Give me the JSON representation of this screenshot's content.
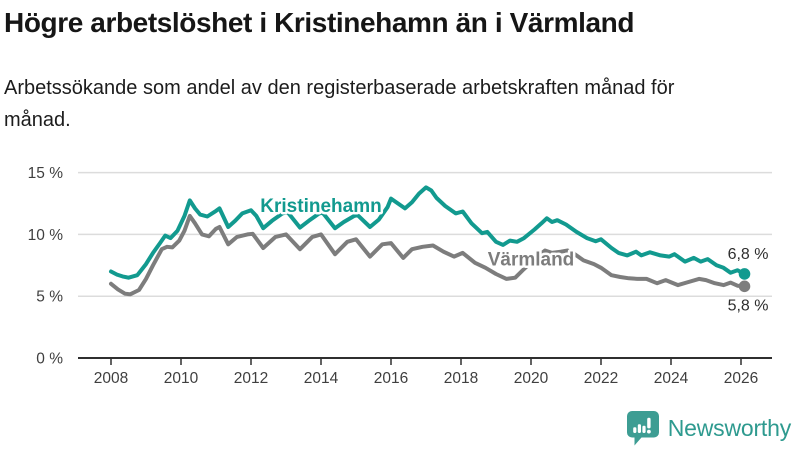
{
  "header": {
    "title": "Högre arbetslöshet i Kristinehamn än i Värmland",
    "subtitle": "Arbetssökande som andel av den registerbaserade arbetskraften månad för månad."
  },
  "chart_data": {
    "type": "line",
    "title": "Högre arbetslöshet i Kristinehamn än i Värmland",
    "xlabel": "",
    "ylabel": "",
    "unit": "%",
    "ylim": [
      0,
      15
    ],
    "xlim": [
      2008.0,
      2026.2
    ],
    "grid": "horizontal",
    "legend_position": "inline-labels",
    "y_ticks": [
      {
        "value": 0,
        "label": "0 %"
      },
      {
        "value": 5,
        "label": "5 %"
      },
      {
        "value": 10,
        "label": "10 %"
      },
      {
        "value": 15,
        "label": "15 %"
      }
    ],
    "x_ticks": [
      {
        "value": 2008,
        "label": "2008"
      },
      {
        "value": 2010,
        "label": "2010"
      },
      {
        "value": 2012,
        "label": "2012"
      },
      {
        "value": 2014,
        "label": "2014"
      },
      {
        "value": 2016,
        "label": "2016"
      },
      {
        "value": 2018,
        "label": "2018"
      },
      {
        "value": 2020,
        "label": "2020"
      },
      {
        "value": 2022,
        "label": "2022"
      },
      {
        "value": 2024,
        "label": "2024"
      },
      {
        "value": 2026,
        "label": "2026"
      }
    ],
    "series": [
      {
        "name": "Kristinehamn",
        "color": "#129a8f",
        "end_label": "6,8 %",
        "end_label_side": "above",
        "label_at": {
          "x": 2014.0,
          "y": 11.8
        },
        "points": [
          [
            2008.0,
            7.0
          ],
          [
            2008.17,
            6.75
          ],
          [
            2008.33,
            6.6
          ],
          [
            2008.5,
            6.5
          ],
          [
            2008.75,
            6.7
          ],
          [
            2009.0,
            7.6
          ],
          [
            2009.2,
            8.5
          ],
          [
            2009.4,
            9.3
          ],
          [
            2009.55,
            9.9
          ],
          [
            2009.7,
            9.7
          ],
          [
            2009.9,
            10.3
          ],
          [
            2010.1,
            11.5
          ],
          [
            2010.25,
            12.75
          ],
          [
            2010.4,
            12.1
          ],
          [
            2010.55,
            11.6
          ],
          [
            2010.75,
            11.45
          ],
          [
            2011.0,
            11.9
          ],
          [
            2011.1,
            12.1
          ],
          [
            2011.35,
            10.6
          ],
          [
            2011.55,
            11.1
          ],
          [
            2011.75,
            11.7
          ],
          [
            2012.0,
            11.95
          ],
          [
            2012.15,
            11.5
          ],
          [
            2012.35,
            10.5
          ],
          [
            2012.6,
            11.1
          ],
          [
            2012.9,
            11.7
          ],
          [
            2013.05,
            11.8
          ],
          [
            2013.4,
            10.55
          ],
          [
            2013.65,
            11.1
          ],
          [
            2013.95,
            11.7
          ],
          [
            2014.05,
            11.75
          ],
          [
            2014.4,
            10.5
          ],
          [
            2014.65,
            11.0
          ],
          [
            2014.95,
            11.5
          ],
          [
            2015.05,
            11.55
          ],
          [
            2015.4,
            10.6
          ],
          [
            2015.65,
            11.2
          ],
          [
            2015.9,
            12.2
          ],
          [
            2016.0,
            12.9
          ],
          [
            2016.2,
            12.5
          ],
          [
            2016.4,
            12.1
          ],
          [
            2016.6,
            12.6
          ],
          [
            2016.8,
            13.3
          ],
          [
            2017.0,
            13.8
          ],
          [
            2017.15,
            13.55
          ],
          [
            2017.3,
            12.95
          ],
          [
            2017.55,
            12.3
          ],
          [
            2017.85,
            11.7
          ],
          [
            2018.05,
            11.85
          ],
          [
            2018.3,
            10.9
          ],
          [
            2018.6,
            10.1
          ],
          [
            2018.75,
            10.2
          ],
          [
            2019.0,
            9.4
          ],
          [
            2019.2,
            9.15
          ],
          [
            2019.4,
            9.5
          ],
          [
            2019.6,
            9.4
          ],
          [
            2019.8,
            9.7
          ],
          [
            2020.1,
            10.4
          ],
          [
            2020.3,
            10.9
          ],
          [
            2020.45,
            11.3
          ],
          [
            2020.6,
            11.0
          ],
          [
            2020.75,
            11.15
          ],
          [
            2021.0,
            10.8
          ],
          [
            2021.3,
            10.2
          ],
          [
            2021.6,
            9.7
          ],
          [
            2021.85,
            9.45
          ],
          [
            2022.0,
            9.6
          ],
          [
            2022.3,
            8.9
          ],
          [
            2022.5,
            8.5
          ],
          [
            2022.75,
            8.3
          ],
          [
            2023.0,
            8.6
          ],
          [
            2023.15,
            8.3
          ],
          [
            2023.4,
            8.55
          ],
          [
            2023.7,
            8.3
          ],
          [
            2023.95,
            8.2
          ],
          [
            2024.1,
            8.4
          ],
          [
            2024.4,
            7.8
          ],
          [
            2024.65,
            8.1
          ],
          [
            2024.85,
            7.8
          ],
          [
            2025.05,
            8.0
          ],
          [
            2025.3,
            7.5
          ],
          [
            2025.5,
            7.3
          ],
          [
            2025.7,
            6.9
          ],
          [
            2025.9,
            7.1
          ],
          [
            2026.1,
            6.8
          ]
        ]
      },
      {
        "name": "Värmland",
        "color": "#7d7d7d",
        "end_label": "5,8 %",
        "end_label_side": "below",
        "label_at": {
          "x": 2020.0,
          "y": 7.5
        },
        "points": [
          [
            2008.0,
            6.0
          ],
          [
            2008.2,
            5.55
          ],
          [
            2008.4,
            5.2
          ],
          [
            2008.55,
            5.15
          ],
          [
            2008.8,
            5.5
          ],
          [
            2009.0,
            6.4
          ],
          [
            2009.2,
            7.5
          ],
          [
            2009.45,
            8.8
          ],
          [
            2009.6,
            9.0
          ],
          [
            2009.75,
            8.95
          ],
          [
            2009.95,
            9.5
          ],
          [
            2010.1,
            10.3
          ],
          [
            2010.25,
            11.5
          ],
          [
            2010.4,
            10.9
          ],
          [
            2010.6,
            10.0
          ],
          [
            2010.8,
            9.85
          ],
          [
            2011.0,
            10.45
          ],
          [
            2011.1,
            10.6
          ],
          [
            2011.35,
            9.2
          ],
          [
            2011.6,
            9.8
          ],
          [
            2011.9,
            10.0
          ],
          [
            2012.05,
            10.05
          ],
          [
            2012.35,
            8.9
          ],
          [
            2012.7,
            9.8
          ],
          [
            2013.0,
            10.0
          ],
          [
            2013.4,
            8.8
          ],
          [
            2013.75,
            9.8
          ],
          [
            2014.0,
            10.0
          ],
          [
            2014.4,
            8.4
          ],
          [
            2014.75,
            9.4
          ],
          [
            2015.0,
            9.6
          ],
          [
            2015.4,
            8.2
          ],
          [
            2015.75,
            9.2
          ],
          [
            2016.0,
            9.3
          ],
          [
            2016.35,
            8.1
          ],
          [
            2016.6,
            8.8
          ],
          [
            2016.9,
            9.0
          ],
          [
            2017.2,
            9.1
          ],
          [
            2017.5,
            8.6
          ],
          [
            2017.8,
            8.2
          ],
          [
            2018.05,
            8.5
          ],
          [
            2018.4,
            7.7
          ],
          [
            2018.7,
            7.3
          ],
          [
            2019.0,
            6.8
          ],
          [
            2019.3,
            6.4
          ],
          [
            2019.55,
            6.5
          ],
          [
            2019.8,
            7.2
          ],
          [
            2020.1,
            8.0
          ],
          [
            2020.4,
            8.7
          ],
          [
            2020.6,
            8.5
          ],
          [
            2020.85,
            8.6
          ],
          [
            2021.05,
            8.7
          ],
          [
            2021.25,
            8.4
          ],
          [
            2021.5,
            7.9
          ],
          [
            2021.8,
            7.6
          ],
          [
            2022.0,
            7.3
          ],
          [
            2022.3,
            6.7
          ],
          [
            2022.55,
            6.55
          ],
          [
            2022.8,
            6.45
          ],
          [
            2023.05,
            6.4
          ],
          [
            2023.3,
            6.4
          ],
          [
            2023.6,
            6.05
          ],
          [
            2023.85,
            6.3
          ],
          [
            2024.2,
            5.9
          ],
          [
            2024.5,
            6.15
          ],
          [
            2024.8,
            6.4
          ],
          [
            2025.0,
            6.3
          ],
          [
            2025.25,
            6.05
          ],
          [
            2025.5,
            5.9
          ],
          [
            2025.7,
            6.1
          ],
          [
            2025.9,
            5.85
          ],
          [
            2026.1,
            5.8
          ]
        ]
      }
    ]
  },
  "footer": {
    "brand": "Newsworthy",
    "logo_icon": "newsworthy-speech-bubble-bar-chart-icon"
  }
}
